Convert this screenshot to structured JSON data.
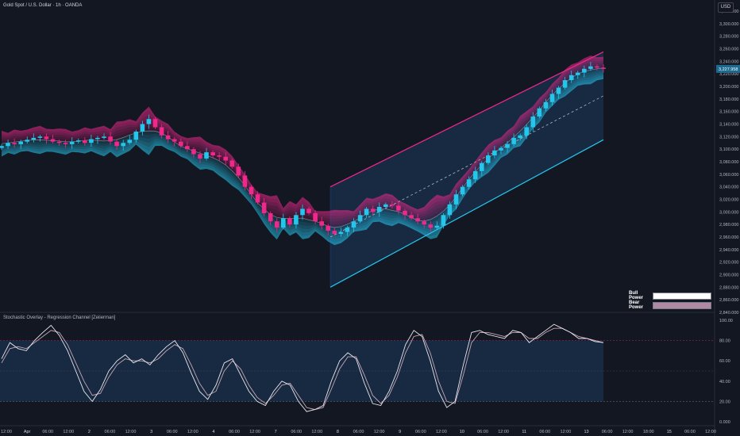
{
  "header": {
    "symbol_title": "Gold Spot / U.S. Dollar · 1h · OANDA",
    "currency_badge": "USD"
  },
  "indicator": {
    "title": "Stochastic Overlay - Regression Channel [Zeiierman]"
  },
  "legend": {
    "bull_label": "Bull Power",
    "bear_label": "Bear Power",
    "bull_color": "#ffffff",
    "bear_color": "#b08aa4"
  },
  "colors": {
    "background": "#131722",
    "bull_candle": "#26c6ec",
    "bear_candle": "#f0288c",
    "upper_channel": "#f0288c",
    "lower_channel": "#26c6ec",
    "price_badge": "#1e6a8f"
  },
  "chart_data": [
    {
      "type": "candlestick",
      "price_axis": {
        "ticks": [
          "3,320.000",
          "3,300.000",
          "3,280.000",
          "3,260.000",
          "3,240.000",
          "3,220.000",
          "3,200.000",
          "3,180.000",
          "3,160.000",
          "3,140.000",
          "3,120.000",
          "3,100.000",
          "3,080.000",
          "3,060.000",
          "3,040.000",
          "3,020.000",
          "3,000.000",
          "2,980.000",
          "2,960.000",
          "2,940.000",
          "2,920.000",
          "2,900.000",
          "2,880.000",
          "2,860.000",
          "2,840.000"
        ],
        "ylim": [
          2840,
          3320
        ]
      },
      "last_price": "3,227.958",
      "time_axis": {
        "ticks": [
          "12:00",
          "Apr",
          "06:00",
          "12:00",
          "2",
          "06:00",
          "12:00",
          "3",
          "06:00",
          "12:00",
          "4",
          "06:00",
          "12:00",
          "7",
          "06:00",
          "12:00",
          "8",
          "06:00",
          "12:00",
          "9",
          "06:00",
          "12:00",
          "10",
          "06:00",
          "12:00",
          "11",
          "06:00",
          "12:00",
          "13",
          "06:00",
          "12:00",
          "18:00",
          "15",
          "06:00",
          "12:00"
        ]
      },
      "close_path": [
        3105,
        3110,
        3108,
        3112,
        3115,
        3118,
        3120,
        3116,
        3112,
        3110,
        3108,
        3112,
        3114,
        3110,
        3116,
        3118,
        3120,
        3112,
        3105,
        3110,
        3115,
        3128,
        3140,
        3148,
        3135,
        3122,
        3116,
        3112,
        3105,
        3100,
        3092,
        3085,
        3095,
        3090,
        3088,
        3082,
        3072,
        3058,
        3040,
        3028,
        3015,
        2998,
        2985,
        2975,
        2990,
        2980,
        2995,
        3005,
        2998,
        2985,
        2978,
        2970,
        2965,
        2968,
        2975,
        2985,
        2995,
        3005,
        3000,
        3008,
        3012,
        3010,
        3002,
        2995,
        2990,
        2985,
        2980,
        2975,
        2978,
        2995,
        3012,
        3028,
        3040,
        3052,
        3065,
        3078,
        3090,
        3098,
        3102,
        3108,
        3118,
        3122,
        3135,
        3152,
        3165,
        3175,
        3188,
        3198,
        3210,
        3218,
        3222,
        3228,
        3232,
        3230,
        3228
      ],
      "regression_channel": {
        "upper_start": 3040,
        "upper_end": 3255,
        "lower_start": 2880,
        "lower_end": 3115
      }
    },
    {
      "type": "line",
      "title": "Stochastic Overlay - Regression Channel [Zeiierman]",
      "y_axis_ticks": [
        "100.00",
        "80.00",
        "60.00",
        "40.00",
        "20.00",
        "0.000"
      ],
      "ylim": [
        0,
        100
      ],
      "overbought": 80,
      "oversold": 20,
      "k_values": [
        62,
        78,
        72,
        70,
        80,
        88,
        95,
        85,
        70,
        50,
        30,
        20,
        32,
        50,
        60,
        66,
        58,
        62,
        56,
        66,
        74,
        80,
        68,
        48,
        30,
        22,
        36,
        58,
        62,
        46,
        30,
        20,
        16,
        30,
        40,
        36,
        20,
        10,
        12,
        16,
        40,
        60,
        68,
        62,
        38,
        18,
        16,
        30,
        50,
        76,
        90,
        84,
        60,
        30,
        14,
        20,
        56,
        88,
        90,
        86,
        84,
        82,
        90,
        88,
        78,
        84,
        90,
        96,
        92,
        88,
        82,
        82,
        79,
        78
      ],
      "d_values": [
        58,
        72,
        74,
        72,
        78,
        84,
        90,
        88,
        76,
        58,
        40,
        26,
        28,
        44,
        56,
        62,
        60,
        60,
        58,
        62,
        70,
        76,
        72,
        56,
        38,
        26,
        30,
        50,
        60,
        52,
        36,
        24,
        18,
        26,
        36,
        38,
        26,
        14,
        12,
        14,
        32,
        52,
        64,
        64,
        46,
        26,
        18,
        26,
        44,
        68,
        84,
        86,
        68,
        40,
        20,
        18,
        46,
        78,
        88,
        88,
        86,
        84,
        88,
        88,
        82,
        82,
        88,
        92,
        92,
        88,
        84,
        82,
        80,
        78
      ]
    }
  ]
}
